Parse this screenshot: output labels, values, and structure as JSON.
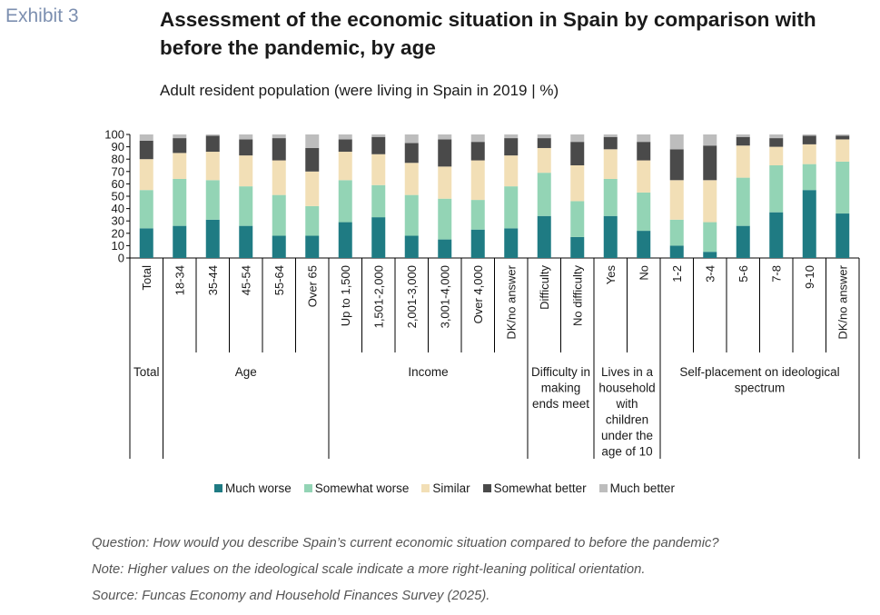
{
  "header": {
    "exhibit": "Exhibit 3",
    "title": "Assessment of the economic situation in Spain by comparison with before the pandemic, by age",
    "subtitle": "Adult resident population (were living in Spain in 2019 | %)"
  },
  "chart_data": {
    "type": "bar",
    "stacked": true,
    "ylim": [
      0,
      100
    ],
    "yticks": [
      0,
      10,
      20,
      30,
      40,
      50,
      60,
      70,
      80,
      90,
      100
    ],
    "categories": [
      "Total",
      "18-34",
      "35-44",
      "45-54",
      "55-64",
      "Over 65",
      "Up to 1,500",
      "1,501-2,000",
      "2,001-3,000",
      "3,001-4,000",
      "Over 4,000",
      "DK/no answer",
      "Difficulty",
      "No difficulty",
      "Yes",
      "No",
      "1-2",
      "3-4",
      "5-6",
      "7-8",
      "9-10",
      "DK/no answer"
    ],
    "groups": [
      {
        "label": "Total",
        "start": 0,
        "end": 0
      },
      {
        "label": "Age",
        "start": 1,
        "end": 5
      },
      {
        "label": "Income",
        "start": 6,
        "end": 11
      },
      {
        "label": "Difficulty in making ends meet",
        "start": 12,
        "end": 13
      },
      {
        "label": "Lives in a household with children under the age of 10",
        "start": 14,
        "end": 15
      },
      {
        "label": "Self-placement on ideological spectrum",
        "start": 16,
        "end": 21
      }
    ],
    "series": [
      {
        "name": "Much worse",
        "color": "#1f7b83",
        "values": [
          24,
          26,
          31,
          26,
          18,
          18,
          29,
          33,
          18,
          15,
          23,
          24,
          34,
          17,
          34,
          22,
          10,
          5,
          26,
          37,
          55,
          36
        ]
      },
      {
        "name": "Somewhat worse",
        "color": "#93d4b5",
        "values": [
          31,
          38,
          32,
          32,
          33,
          24,
          34,
          26,
          33,
          33,
          24,
          34,
          35,
          29,
          30,
          31,
          21,
          24,
          39,
          38,
          21,
          42
        ]
      },
      {
        "name": "Similar",
        "color": "#f2dfb6",
        "values": [
          25,
          21,
          23,
          25,
          28,
          28,
          23,
          25,
          26,
          26,
          32,
          25,
          20,
          29,
          24,
          26,
          32,
          34,
          26,
          15,
          16,
          18
        ]
      },
      {
        "name": "Somewhat better",
        "color": "#4a4a4a",
        "values": [
          15,
          12,
          13,
          13,
          18,
          19,
          10,
          14,
          16,
          22,
          15,
          14,
          8,
          19,
          10,
          15,
          25,
          28,
          7,
          7,
          7,
          3
        ]
      },
      {
        "name": "Much better",
        "color": "#bdbdbd",
        "values": [
          5,
          3,
          1,
          4,
          3,
          11,
          4,
          2,
          7,
          4,
          6,
          3,
          3,
          6,
          2,
          6,
          12,
          9,
          2,
          3,
          1,
          1
        ]
      }
    ]
  },
  "notes": {
    "question": "Question: How would you describe Spain’s current economic situation compared to before the pandemic?",
    "note": "Note: Higher values on the ideological scale indicate a more right-leaning political orientation.",
    "source": "Source: Funcas Economy and Household Finances Survey (2025)."
  }
}
